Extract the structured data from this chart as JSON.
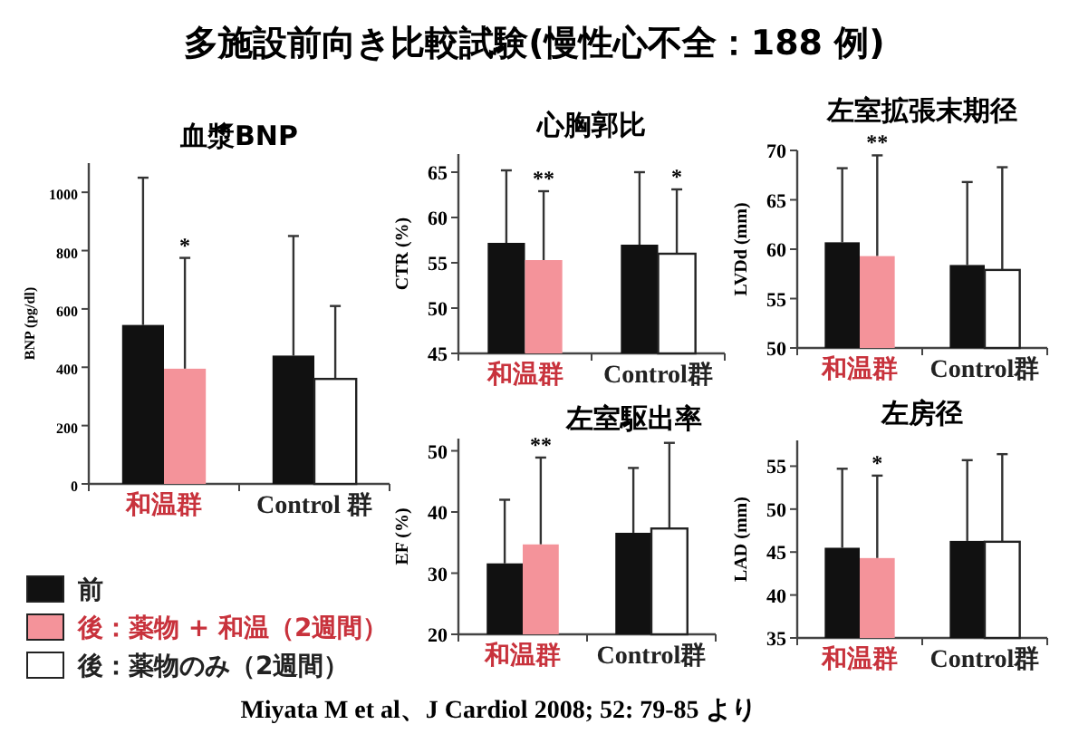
{
  "chart_data": [
    {
      "type": "other",
      "title": "多施設前向き比較試験(慢性心不全：188 例)",
      "annotations": [
        "Miyata M et al、J Cardiol 2008; 52: 79-85 より"
      ]
    },
    {
      "type": "bar",
      "title": "血漿BNP",
      "ylabel": "BNP (pg/dl)",
      "categories": [
        "和温群",
        "Control 群"
      ],
      "ylim": [
        0,
        1100
      ],
      "yticks": [
        0,
        200,
        400,
        600,
        800,
        1000
      ],
      "legend": "bottom left",
      "series": [
        {
          "name": "前",
          "color": "#111111",
          "values": [
            545,
            440
          ],
          "errors": [
            [
              545,
              1050
            ],
            [
              440,
              850
            ]
          ]
        },
        {
          "name": "後：薬物 + 和温（2週間）",
          "color": "#f4939a",
          "values": [
            395,
            null
          ],
          "errors": [
            [
              395,
              775
            ],
            null
          ]
        },
        {
          "name": "後：薬物のみ（2週間）",
          "color": "#ffffff",
          "values": [
            null,
            360
          ],
          "errors": [
            null,
            [
              360,
              610
            ]
          ]
        }
      ],
      "annotations": [
        "*"
      ]
    },
    {
      "type": "bar",
      "title": "心胸郭比",
      "ylabel": "CTR (%)",
      "categories": [
        "和温群",
        "Control群"
      ],
      "ylim": [
        45,
        67
      ],
      "yticks": [
        45,
        50,
        55,
        60,
        65
      ],
      "series": [
        {
          "color": "#111111",
          "values": [
            57.2,
            57.0
          ],
          "errors": [
            [
              57.2,
              65.2
            ],
            [
              57.0,
              65.0
            ]
          ]
        },
        {
          "color": "#f4939a",
          "values": [
            55.3,
            null
          ],
          "errors": [
            [
              55.3,
              62.9
            ],
            null
          ]
        },
        {
          "color": "#ffffff",
          "values": [
            null,
            56.0
          ],
          "errors": [
            null,
            [
              56.0,
              63.1
            ]
          ]
        }
      ],
      "annotations": [
        "**",
        "*"
      ]
    },
    {
      "type": "bar",
      "title": "左室拡張末期径",
      "ylabel": "LVDd (mm)",
      "categories": [
        "和温群",
        "Control群"
      ],
      "ylim": [
        50,
        70
      ],
      "yticks": [
        50,
        55,
        60,
        65,
        70
      ],
      "series": [
        {
          "color": "#111111",
          "values": [
            60.7,
            58.4
          ],
          "errors": [
            [
              60.7,
              68.2
            ],
            [
              58.4,
              66.8
            ]
          ]
        },
        {
          "color": "#f4939a",
          "values": [
            59.3,
            null
          ],
          "errors": [
            [
              59.3,
              69.5
            ],
            null
          ]
        },
        {
          "color": "#ffffff",
          "values": [
            null,
            57.9
          ],
          "errors": [
            null,
            [
              57.9,
              68.3
            ]
          ]
        }
      ],
      "annotations": [
        "**"
      ]
    },
    {
      "type": "bar",
      "title": "左室駆出率",
      "ylabel": "EF (%)",
      "categories": [
        "和温群",
        "Control群"
      ],
      "ylim": [
        20,
        52
      ],
      "yticks": [
        20,
        30,
        40,
        50
      ],
      "series": [
        {
          "color": "#111111",
          "values": [
            31.6,
            36.6
          ],
          "errors": [
            [
              31.6,
              42
            ],
            [
              36.6,
              47.2
            ]
          ]
        },
        {
          "color": "#f4939a",
          "values": [
            34.7,
            null
          ],
          "errors": [
            [
              34.7,
              48.9
            ],
            null
          ]
        },
        {
          "color": "#ffffff",
          "values": [
            null,
            37.3
          ],
          "errors": [
            null,
            [
              37.3,
              51.3
            ]
          ]
        }
      ],
      "annotations": [
        "**"
      ]
    },
    {
      "type": "bar",
      "title": "左房径",
      "ylabel": "LAD (mm)",
      "categories": [
        "和温群",
        "Control群"
      ],
      "ylim": [
        35,
        58
      ],
      "yticks": [
        35,
        40,
        45,
        50,
        55
      ],
      "series": [
        {
          "color": "#111111",
          "values": [
            45.5,
            46.3
          ],
          "errors": [
            [
              45.5,
              54.7
            ],
            [
              46.3,
              55.7
            ]
          ]
        },
        {
          "color": "#f4939a",
          "values": [
            44.3,
            null
          ],
          "errors": [
            [
              44.3,
              53.9
            ],
            null
          ]
        },
        {
          "color": "#ffffff",
          "values": [
            null,
            46.2
          ],
          "errors": [
            null,
            [
              46.2,
              56.4
            ]
          ]
        }
      ],
      "annotations": [
        "*"
      ]
    }
  ]
}
